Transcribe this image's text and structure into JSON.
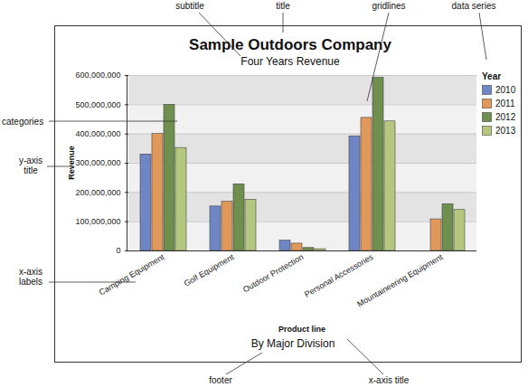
{
  "chart_data": {
    "type": "bar",
    "title": "Sample Outdoors Company",
    "subtitle": "Four Years Revenue",
    "footer": "By Major Division",
    "x_label": "Product line",
    "y_label": "Revenue",
    "legend_title": "Year",
    "legend": "right",
    "grid": true,
    "categories": [
      "Camping Equipment",
      "Golf Equipment",
      "Outdoor Protection",
      "Personal Accessories",
      "Mountaineering Equipment"
    ],
    "series": [
      {
        "name": "2010",
        "color": "#6f86c5",
        "values": [
          330000000,
          152000000,
          35000000,
          392000000,
          null
        ]
      },
      {
        "name": "2011",
        "color": "#e0995a",
        "values": [
          400000000,
          168000000,
          25000000,
          455000000,
          108000000
        ]
      },
      {
        "name": "2012",
        "color": "#6f8f4f",
        "values": [
          500000000,
          228000000,
          10000000,
          592000000,
          160000000
        ]
      },
      {
        "name": "2013",
        "color": "#b5c77f",
        "values": [
          352000000,
          175000000,
          6000000,
          443000000,
          140000000
        ]
      }
    ],
    "ylim": [
      0,
      600000000
    ],
    "yticks": [
      0,
      {
        "value": 100000000,
        "label": "100,000,000"
      },
      {
        "value": 200000000,
        "label": "200,000,000"
      },
      {
        "value": 300000000,
        "label": "300,000,000"
      },
      {
        "value": 400000000,
        "label": "400,000,000"
      },
      {
        "value": 500000000,
        "label": "500,000,000"
      },
      {
        "value": 600000000,
        "label": "600,000,000"
      }
    ],
    "annotations": [
      "subtitle",
      "title",
      "gridlines",
      "data series",
      "categories",
      "y-axis title",
      "x-axis labels",
      "footer",
      "x-axis title"
    ]
  }
}
